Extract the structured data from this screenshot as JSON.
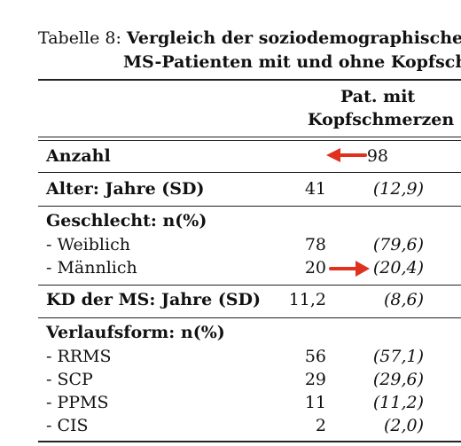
{
  "caption": {
    "label": "Tabelle 8:",
    "title_line1": "Vergleich der soziodemographischen",
    "title_line2": "MS-Patienten mit und ohne Kopfsch"
  },
  "header": {
    "line1": "Pat. mit",
    "line2": "Kopfschmerzen"
  },
  "rows": {
    "anzahl": {
      "label": "Anzahl",
      "n": "98"
    },
    "alter": {
      "label": "Alter: Jahre (SD)",
      "n": "41",
      "pct": "(12,9)"
    },
    "geschlecht": {
      "label": "Geschlecht: n(%)"
    },
    "weiblich": {
      "label": "- Weiblich",
      "n": "78",
      "pct": "(79,6)"
    },
    "maennlich": {
      "label": "- Männlich",
      "n": "20",
      "pct": "(20,4)"
    },
    "kd": {
      "label": "KD der MS: Jahre (SD)",
      "n": "11,2",
      "pct": "(8,6)"
    },
    "verlauf": {
      "label": "Verlaufsform: n(%)"
    },
    "rrms": {
      "label": "- RRMS",
      "n": "56",
      "pct": "(57,1)"
    },
    "scp": {
      "label": "- SCP",
      "n": "29",
      "pct": "(29,6)"
    },
    "ppms": {
      "label": "- PPMS",
      "n": "11",
      "pct": "(11,2)"
    },
    "cis": {
      "label": "- CIS",
      "n": "2",
      "pct": "(2,0)"
    }
  },
  "annotations": {
    "arrow_color": "#e0301e"
  }
}
